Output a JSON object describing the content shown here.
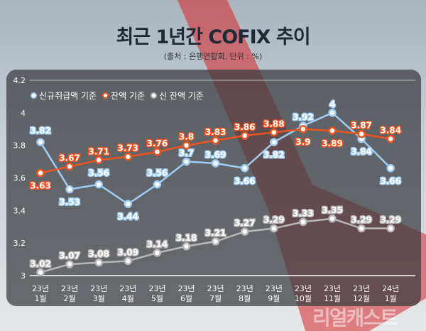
{
  "title": "최근 1년간 COFIX 추이",
  "subtitle": "(출처 : 은행연합회, 단위 : %)",
  "watermark": "리얼캐스트",
  "colors": {
    "new": "#9fcdf5",
    "balance": "#f0541e",
    "new_balance": "#b8b8b8"
  },
  "chart_data": {
    "type": "line",
    "title": "최근 1년간 COFIX 추이",
    "xlabel": "",
    "ylabel": "%",
    "ylim": [
      3,
      4.2
    ],
    "yticks": [
      "3",
      "3.2",
      "3.4",
      "3.6",
      "3.8",
      "4",
      "4.2"
    ],
    "grid": false,
    "legend_position": "top-left",
    "categories": [
      [
        "23년",
        "1월"
      ],
      [
        "23년",
        "2월"
      ],
      [
        "23년",
        "3월"
      ],
      [
        "23년",
        "4월"
      ],
      [
        "23년",
        "5월"
      ],
      [
        "23년",
        "6월"
      ],
      [
        "23년",
        "7월"
      ],
      [
        "23년",
        "8월"
      ],
      [
        "23년",
        "9월"
      ],
      [
        "23년",
        "10월"
      ],
      [
        "23년",
        "11월"
      ],
      [
        "23년",
        "12월"
      ],
      [
        "24년",
        "1월"
      ]
    ],
    "series": [
      {
        "name": "신규취급액 기준",
        "key": "new",
        "values": [
          3.82,
          3.53,
          3.56,
          3.44,
          3.56,
          3.7,
          3.69,
          3.66,
          3.82,
          3.92,
          4,
          3.84,
          3.66
        ],
        "labels": [
          "3.82",
          "3.53",
          "3.56",
          "3.44",
          "3.56",
          "3.7",
          "3.69",
          "3.66",
          "3.82",
          "3.92",
          "4",
          "3.84",
          "3.66"
        ]
      },
      {
        "name": "잔액 기준",
        "key": "balance",
        "values": [
          3.63,
          3.67,
          3.71,
          3.73,
          3.76,
          3.8,
          3.83,
          3.86,
          3.88,
          3.9,
          3.89,
          3.87,
          3.84
        ],
        "labels": [
          "3.63",
          "3.67",
          "3.71",
          "3.73",
          "3.76",
          "3.8",
          "3.83",
          "3.86",
          "3.88",
          "3.9",
          "3.89",
          "3.87",
          "3.84"
        ]
      },
      {
        "name": "신 잔액 기준",
        "key": "new_balance",
        "values": [
          3.02,
          3.07,
          3.08,
          3.09,
          3.14,
          3.18,
          3.21,
          3.27,
          3.29,
          3.33,
          3.35,
          3.29,
          3.29
        ],
        "labels": [
          "3.02",
          "3.07",
          "3.08",
          "3.09",
          "3.14",
          "3.18",
          "3.21",
          "3.27",
          "3.29",
          "3.33",
          "3.35",
          "3.29",
          "3.29"
        ]
      }
    ]
  }
}
